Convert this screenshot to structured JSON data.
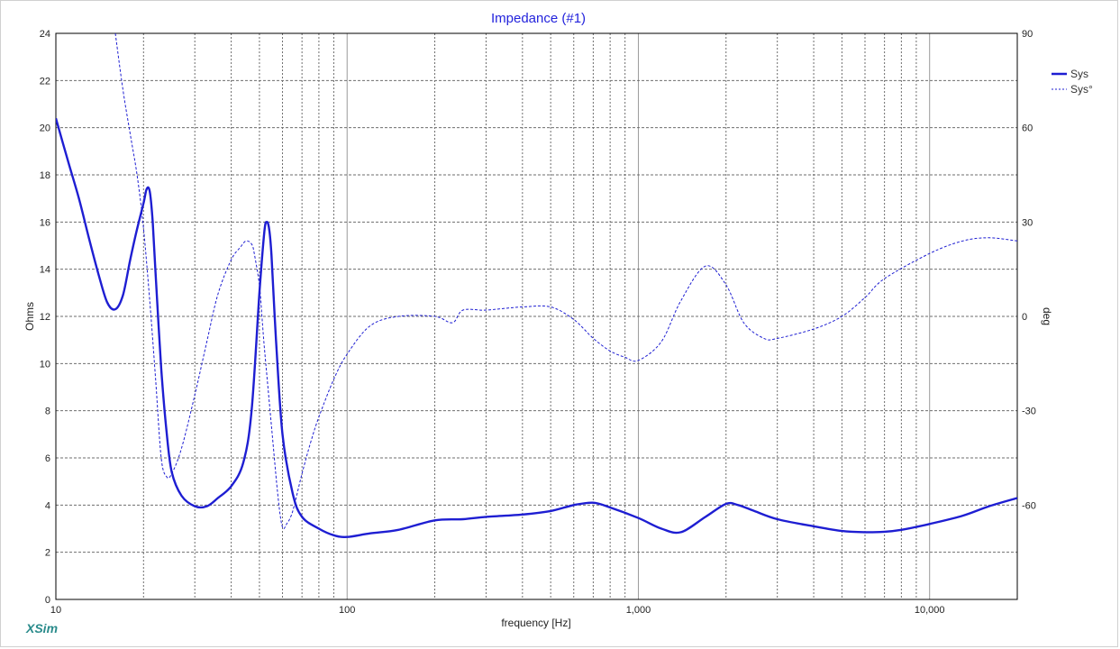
{
  "window": {
    "brand": "XSim"
  },
  "chart_data": {
    "type": "line",
    "title": "Impedance (#1)",
    "xlabel": "frequency [Hz]",
    "ylabel": "Ohms",
    "y2label": "deg",
    "xscale": "log",
    "xlim": [
      10,
      20000
    ],
    "ylim": [
      0,
      24
    ],
    "y2lim": [
      -90,
      90
    ],
    "xticks": [
      {
        "value": 10,
        "label": "10"
      },
      {
        "value": 100,
        "label": "100"
      },
      {
        "value": 1000,
        "label": "1,000"
      },
      {
        "value": 10000,
        "label": "10,000"
      }
    ],
    "yticks": [
      0,
      2,
      4,
      6,
      8,
      10,
      12,
      14,
      16,
      18,
      20,
      22,
      24
    ],
    "y2ticks": [
      -60,
      -30,
      0,
      30,
      60,
      90
    ],
    "grid": true,
    "legend_position": "top-right",
    "series": [
      {
        "name": "Sys",
        "axis": "left",
        "style": "solid",
        "color": "#1e1ed2",
        "x": [
          10,
          11,
          12,
          13,
          14,
          15,
          16,
          17,
          18,
          19,
          20,
          20.5,
          21,
          21.5,
          22,
          23,
          24,
          25,
          27,
          30,
          33,
          36,
          40,
          44,
          47,
          50,
          52,
          53,
          54,
          55,
          57,
          60,
          65,
          70,
          80,
          90,
          100,
          120,
          150,
          200,
          250,
          300,
          400,
          500,
          600,
          700,
          800,
          1000,
          1200,
          1400,
          1700,
          2000,
          2200,
          2500,
          3000,
          4000,
          5000,
          6000,
          7000,
          8000,
          10000,
          13000,
          16000,
          20000
        ],
        "y": [
          20.4,
          18.6,
          17.0,
          15.3,
          13.8,
          12.6,
          12.3,
          12.9,
          14.4,
          15.7,
          16.8,
          17.4,
          17.3,
          16.0,
          13.8,
          9.8,
          7.1,
          5.4,
          4.4,
          3.95,
          3.95,
          4.3,
          4.8,
          5.8,
          8.0,
          13.0,
          15.6,
          16.0,
          15.7,
          14.6,
          11.0,
          7.0,
          4.5,
          3.5,
          3.0,
          2.72,
          2.65,
          2.8,
          2.95,
          3.35,
          3.4,
          3.5,
          3.6,
          3.75,
          4.0,
          4.1,
          3.9,
          3.45,
          3.0,
          2.85,
          3.5,
          4.05,
          4.0,
          3.75,
          3.4,
          3.1,
          2.9,
          2.85,
          2.87,
          2.95,
          3.2,
          3.55,
          3.95,
          4.3
        ]
      },
      {
        "name": "Sys°",
        "axis": "right",
        "style": "dashed",
        "color": "#1e1ed2",
        "x": [
          16,
          17,
          18,
          19,
          20,
          21,
          22,
          23,
          24,
          25,
          27,
          30,
          33,
          36,
          40,
          43,
          45,
          47,
          48,
          50,
          51,
          52,
          55,
          58,
          60,
          62,
          65,
          70,
          75,
          80,
          90,
          100,
          120,
          150,
          200,
          230,
          250,
          300,
          400,
          500,
          600,
          700,
          800,
          900,
          1000,
          1200,
          1400,
          1700,
          2000,
          2300,
          2700,
          3000,
          4000,
          5000,
          6000,
          7000,
          10000,
          13000,
          16000,
          20000
        ],
        "y": [
          90,
          72,
          58,
          45,
          28,
          5,
          -20,
          -45,
          -51,
          -50,
          -42,
          -25,
          -8,
          7,
          18,
          22,
          24,
          23,
          20,
          10,
          0,
          -10,
          -35,
          -58,
          -67,
          -66,
          -62,
          -50,
          -40,
          -32,
          -20,
          -12,
          -3,
          0,
          0,
          -2,
          2,
          2,
          3,
          3,
          -1,
          -7,
          -11,
          -13,
          -14,
          -8,
          5,
          16,
          10,
          -2,
          -7,
          -7,
          -4,
          0,
          6,
          12,
          20,
          24,
          25,
          24
        ]
      }
    ]
  }
}
